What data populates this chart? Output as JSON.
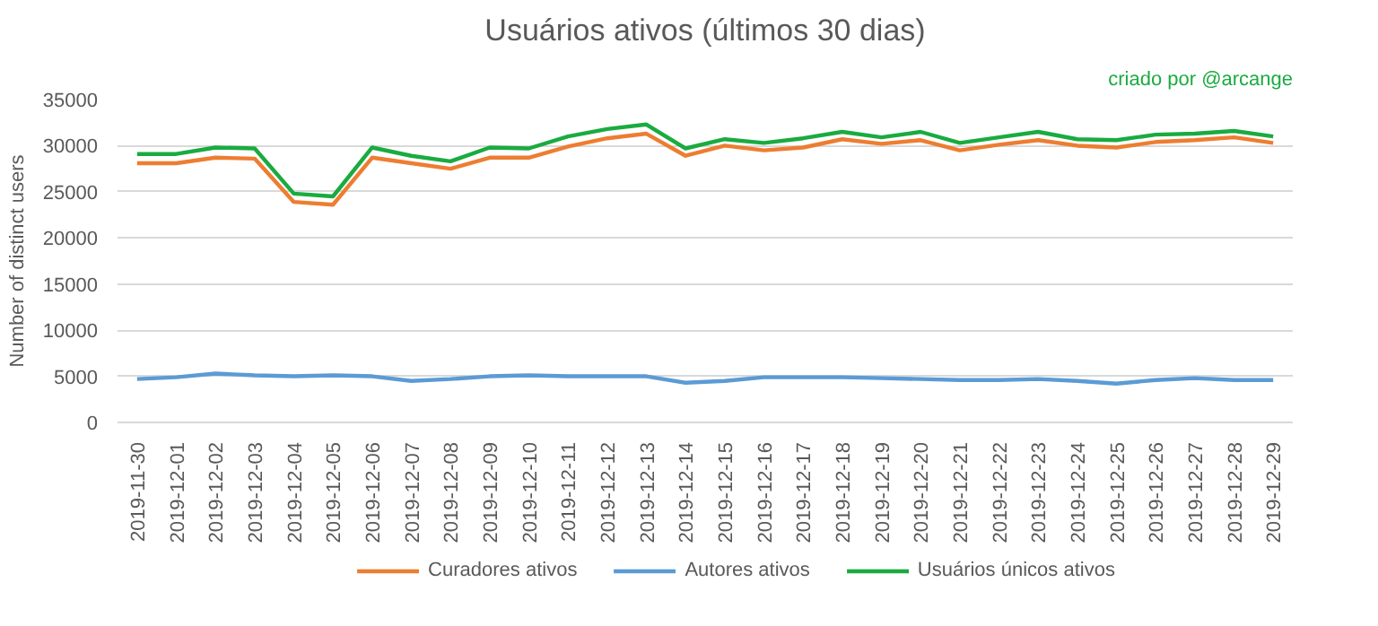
{
  "chart_data": {
    "type": "line",
    "title": "Usuários ativos (últimos 30 dias)",
    "ylabel": "Number of distinct users",
    "annotations": [
      "criado por @arcange"
    ],
    "categories": [
      "2019-11-30",
      "2019-12-01",
      "2019-12-02",
      "2019-12-03",
      "2019-12-04",
      "2019-12-05",
      "2019-12-06",
      "2019-12-07",
      "2019-12-08",
      "2019-12-09",
      "2019-12-10",
      "2019-12-11",
      "2019-12-12",
      "2019-12-13",
      "2019-12-14",
      "2019-12-15",
      "2019-12-16",
      "2019-12-17",
      "2019-12-18",
      "2019-12-19",
      "2019-12-20",
      "2019-12-21",
      "2019-12-22",
      "2019-12-23",
      "2019-12-24",
      "2019-12-25",
      "2019-12-26",
      "2019-12-27",
      "2019-12-28",
      "2019-12-29"
    ],
    "series": [
      {
        "name": "Curadores ativos",
        "color": "#ed7d31",
        "values": [
          28100,
          28100,
          28700,
          28600,
          23900,
          23600,
          28700,
          28100,
          27500,
          28700,
          28700,
          29900,
          30800,
          31300,
          28900,
          30000,
          29500,
          29800,
          30700,
          30200,
          30600,
          29500,
          30100,
          30600,
          30000,
          29800,
          30400,
          30600,
          30900,
          30300
        ]
      },
      {
        "name": "Autores ativos",
        "color": "#5b9bd5",
        "values": [
          4700,
          4900,
          5300,
          5100,
          5000,
          5100,
          5000,
          4500,
          4700,
          5000,
          5100,
          5000,
          5000,
          5000,
          4300,
          4500,
          4900,
          4900,
          4900,
          4800,
          4700,
          4600,
          4600,
          4700,
          4500,
          4200,
          4600,
          4800,
          4600,
          4600
        ]
      },
      {
        "name": "Usuários únicos ativos",
        "color": "#1aab40",
        "values": [
          29100,
          29100,
          29800,
          29700,
          24800,
          24500,
          29800,
          28900,
          28300,
          29800,
          29700,
          31000,
          31800,
          32300,
          29700,
          30700,
          30300,
          30800,
          31500,
          30900,
          31500,
          30300,
          30900,
          31500,
          30700,
          30600,
          31200,
          31300,
          31600,
          31000
        ]
      }
    ],
    "ylim": [
      0,
      35000
    ],
    "yticks": [
      0,
      5000,
      10000,
      15000,
      20000,
      25000,
      30000,
      35000
    ],
    "grid": "y",
    "legend": "bottom",
    "marker": "none",
    "line_style": "solid"
  }
}
